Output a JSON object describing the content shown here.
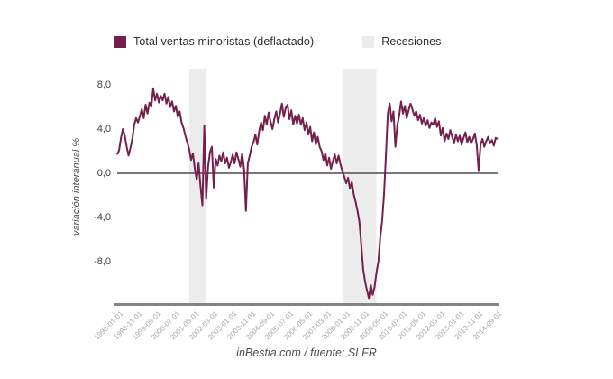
{
  "legend": {
    "series_label": "Total ventas minoristas (deflactado)",
    "recessions_label": "Recesiones"
  },
  "y_axis": {
    "title": "variación interanual %",
    "tick_labels": [
      "8,0",
      "4,0",
      "0,0",
      "-4,0",
      "-8,0"
    ],
    "tick_values": [
      8,
      4,
      0,
      -4,
      -8
    ]
  },
  "x_axis": {
    "tick_labels": [
      "1998-01-01",
      "1998-11-01",
      "1999-09-01",
      "2000-07-01",
      "2001-05-01",
      "2002-03-01",
      "2003-01-01",
      "2003-11-01",
      "2004-09-01",
      "2005-07-01",
      "2006-05-01",
      "2007-03-01",
      "2008-01-01",
      "2008-11-01",
      "2009-09-01",
      "2010-07-01",
      "2011-05-01",
      "2012-03-01",
      "2013-01-01",
      "2013-11-01",
      "2014-09-01"
    ],
    "tick_interval_months": 10
  },
  "footer": {
    "source": "inBestia.com / fuente: SLFR"
  },
  "colors": {
    "series": "#75204c",
    "recession_band": "#ececec",
    "zero_line": "#4c4c4c",
    "axis_line": "#848484",
    "x_tick_label": "#a5a5a5",
    "y_tick_label": "#3f3f3f",
    "legend_text": "#2e2e2e"
  },
  "chart_data": {
    "type": "line",
    "title": "",
    "xlabel": "",
    "ylabel": "variación interanual %",
    "ylim": [
      -12,
      9
    ],
    "grid": false,
    "legend_position": "top",
    "x_start": "1998-01",
    "x_frequency": "monthly",
    "series": [
      {
        "name": "Total ventas minoristas (deflactado)",
        "values": [
          1.7,
          2.1,
          3.2,
          4.0,
          3.4,
          2.4,
          1.6,
          2.3,
          3.1,
          4.4,
          5.0,
          4.6,
          5.2,
          5.8,
          5.0,
          6.2,
          5.4,
          6.4,
          6.0,
          7.7,
          6.6,
          7.2,
          6.4,
          7.0,
          6.6,
          7.2,
          6.3,
          6.9,
          6.0,
          6.5,
          5.6,
          6.1,
          5.1,
          5.6,
          4.6,
          4.1,
          3.4,
          2.8,
          2.2,
          1.2,
          1.8,
          0.4,
          -0.6,
          0.9,
          -1.2,
          -2.9,
          4.3,
          -2.3,
          0.6,
          1.9,
          2.4,
          -1.3,
          1.3,
          0.7,
          1.6,
          1.1,
          1.9,
          0.9,
          1.4,
          0.5,
          1.0,
          1.7,
          0.9,
          1.9,
          1.3,
          0.6,
          1.8,
          0.4,
          -3.4,
          0.9,
          1.6,
          2.4,
          2.8,
          3.5,
          2.6,
          3.8,
          4.6,
          3.9,
          5.2,
          4.4,
          5.5,
          4.7,
          4.0,
          4.9,
          5.6,
          4.6,
          5.4,
          6.3,
          5.1,
          5.9,
          6.2,
          4.9,
          5.7,
          4.4,
          5.2,
          4.5,
          5.3,
          4.4,
          5.0,
          3.9,
          4.6,
          3.5,
          4.2,
          2.9,
          3.7,
          2.6,
          3.3,
          2.4,
          2.0,
          1.2,
          1.8,
          0.7,
          1.4,
          0.4,
          1.1,
          1.7,
          0.9,
          1.6,
          0.8,
          0.2,
          -0.3,
          -0.9,
          -0.4,
          -1.4,
          -0.8,
          -1.9,
          -2.6,
          -3.4,
          -4.4,
          -6.5,
          -8.7,
          -9.8,
          -10.6,
          -11.3,
          -10.1,
          -11.0,
          -10.3,
          -9.0,
          -8.0,
          -5.8,
          -4.3,
          -1.9,
          1.6,
          5.4,
          6.3,
          4.7,
          5.6,
          2.4,
          4.3,
          5.2,
          6.5,
          5.4,
          6.1,
          5.0,
          5.7,
          6.3,
          5.8,
          5.2,
          5.6,
          4.8,
          5.3,
          4.5,
          5.0,
          4.3,
          4.8,
          4.1,
          4.6,
          4.4,
          5.0,
          4.2,
          4.7,
          3.4,
          4.1,
          2.9,
          3.6,
          3.1,
          3.9,
          3.3,
          2.7,
          3.5,
          2.9,
          3.4,
          2.6,
          3.2,
          3.7,
          2.8,
          3.3,
          2.7,
          3.1,
          3.6,
          2.5,
          0.2,
          2.6,
          3.1,
          2.4,
          2.9,
          3.3,
          2.7,
          3.0,
          2.5,
          3.2,
          3.1
        ]
      }
    ],
    "recessions": [
      {
        "from": "2001-03",
        "to": "2001-12"
      },
      {
        "from": "2007-12",
        "to": "2009-06"
      }
    ]
  }
}
